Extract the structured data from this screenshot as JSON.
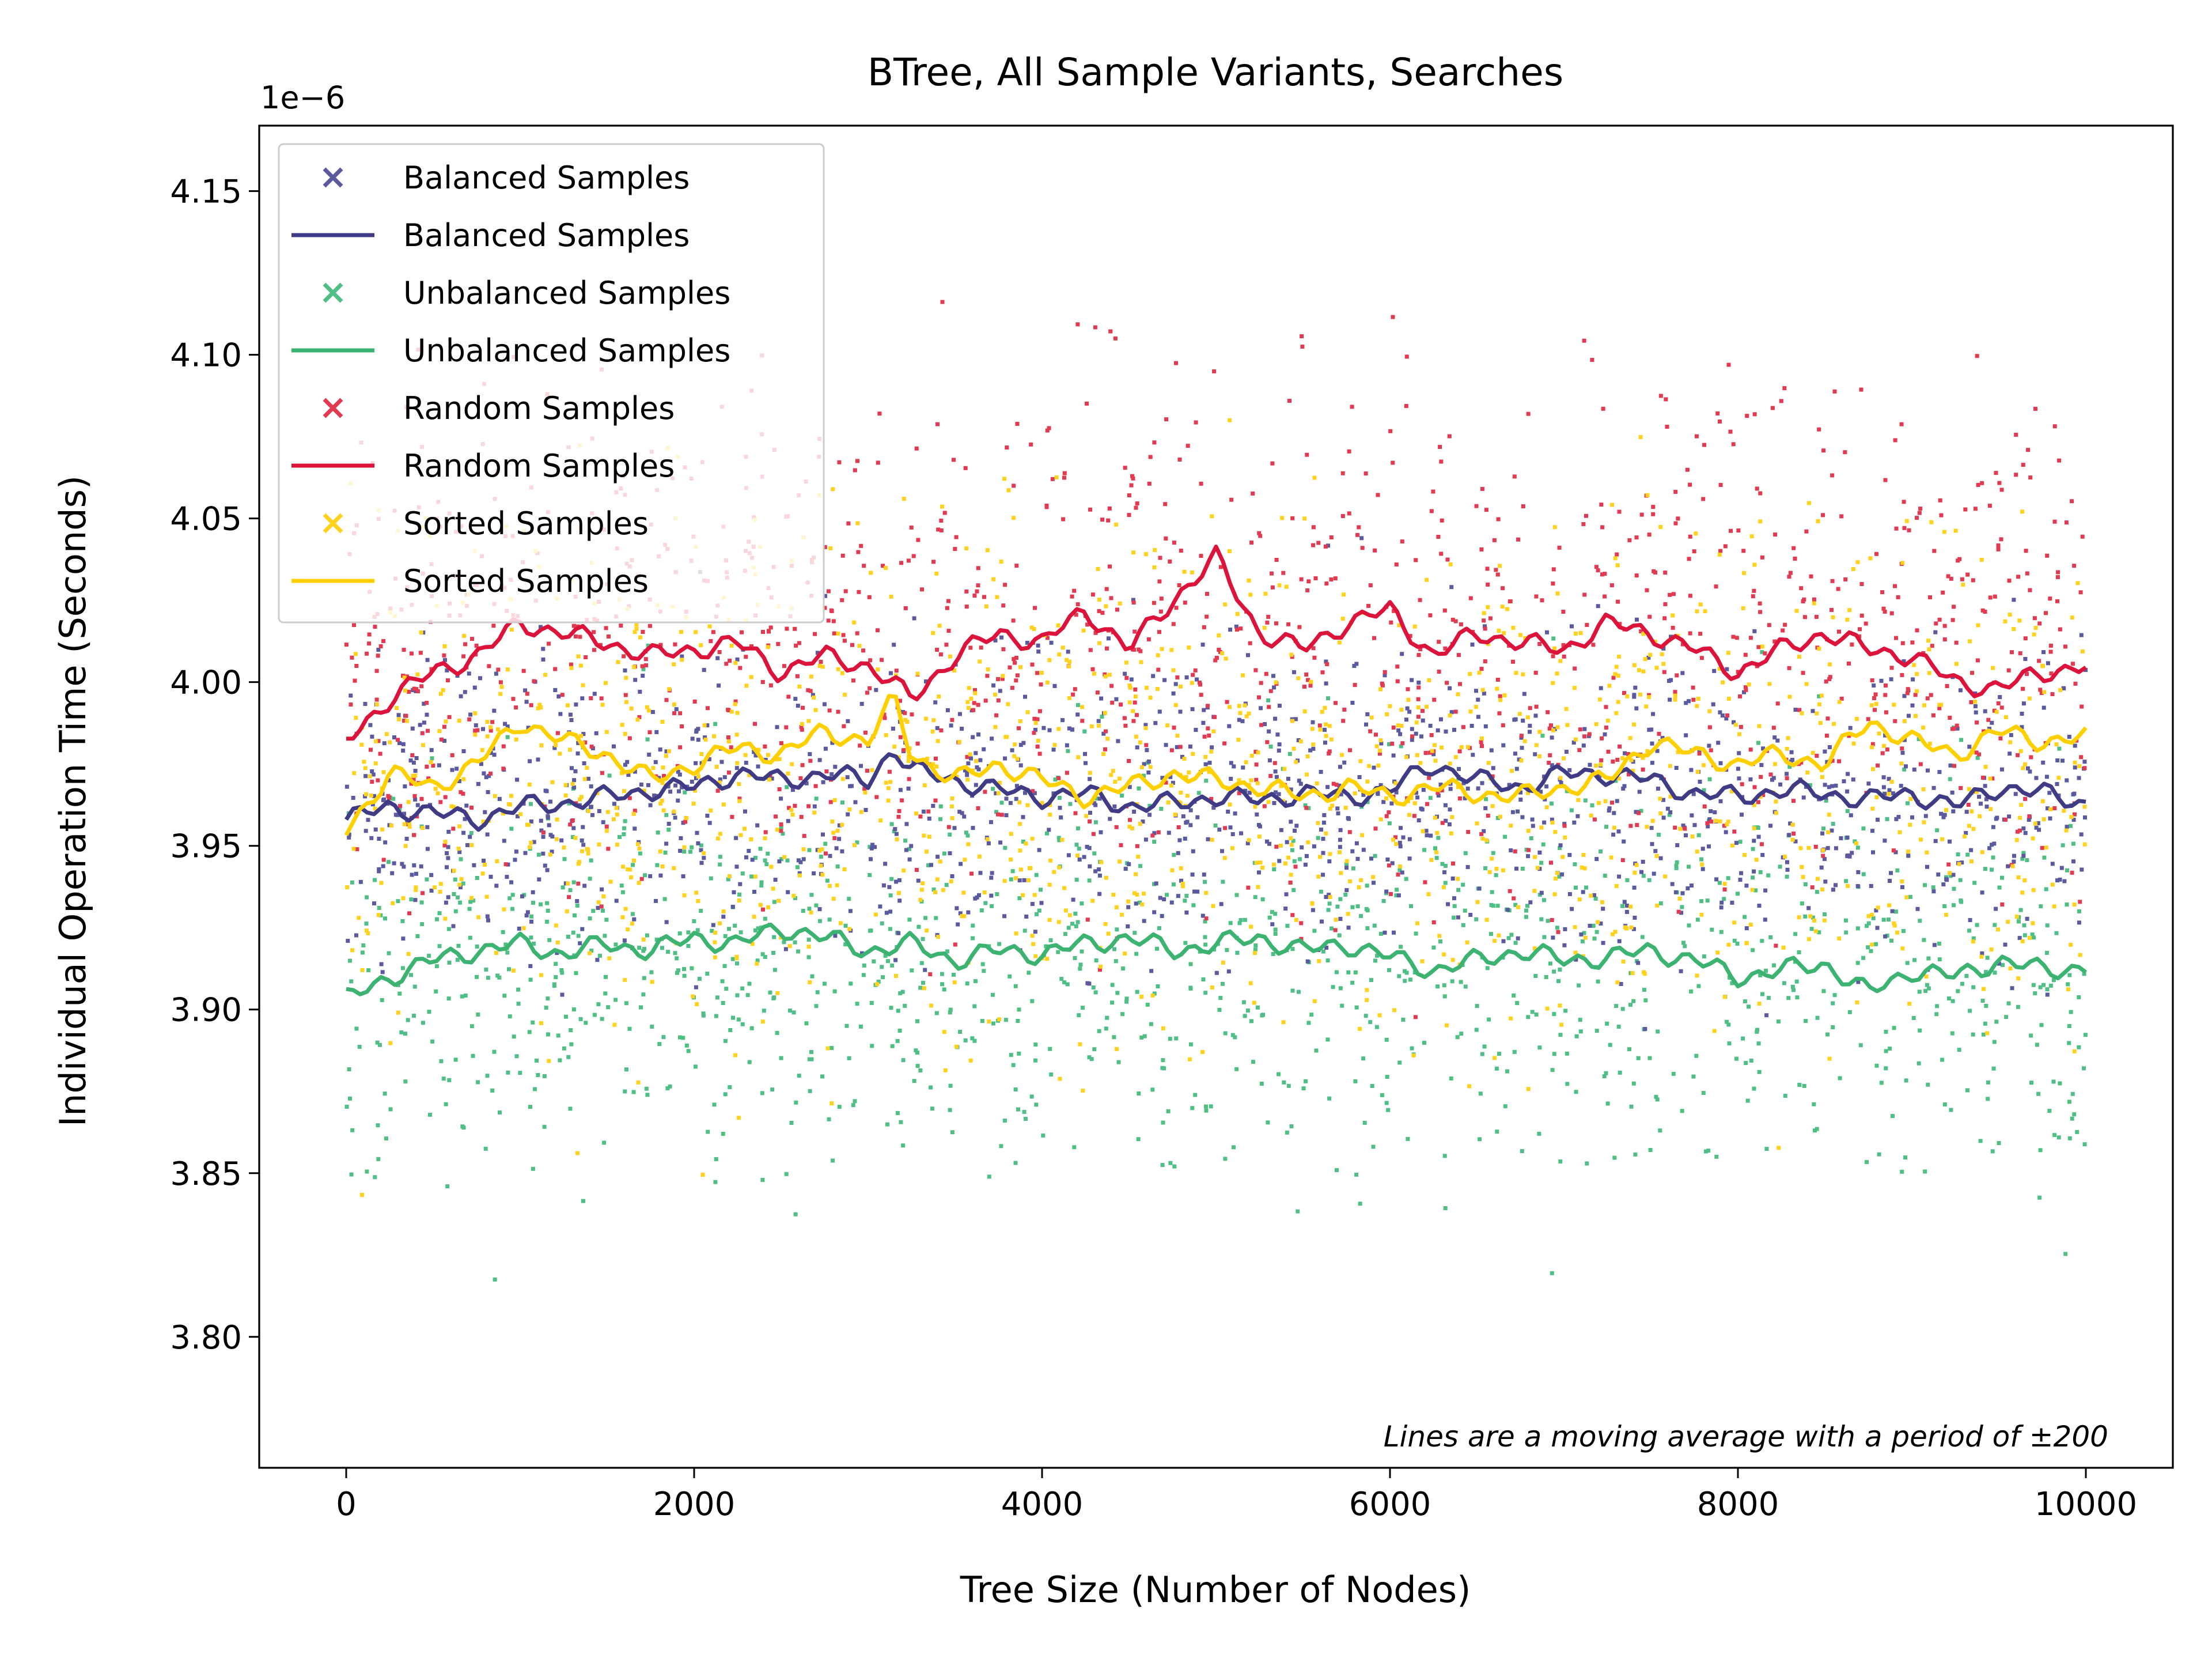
{
  "chart_data": {
    "type": "scatter",
    "title": "BTree, All Sample Variants, Searches",
    "xlabel": "Tree Size (Number of Nodes)",
    "ylabel": "Individual Operation Time (Seconds)",
    "offset_label": "1e−6",
    "annotation": "Lines are a moving average with a period of ±200",
    "xlim": [
      -500,
      10500
    ],
    "ylim": [
      3.76,
      4.17
    ],
    "xticks": [
      0,
      2000,
      4000,
      6000,
      8000,
      10000
    ],
    "xtick_labels": [
      "0",
      "2000",
      "4000",
      "6000",
      "8000",
      "10000"
    ],
    "yticks": [
      3.8,
      3.85,
      3.9,
      3.95,
      4.0,
      4.05,
      4.1,
      4.15
    ],
    "ytick_labels": [
      "3.80",
      "3.85",
      "3.90",
      "3.95",
      "4.00",
      "4.05",
      "4.10",
      "4.15"
    ],
    "grid": false,
    "legend_position": "top-left",
    "legend": [
      {
        "label": "Balanced Samples",
        "kind": "marker",
        "color": "#5b5a9e"
      },
      {
        "label": "Balanced Samples",
        "kind": "line",
        "color": "#3f3c85"
      },
      {
        "label": "Unbalanced Samples",
        "kind": "marker",
        "color": "#4fbf85"
      },
      {
        "label": "Unbalanced Samples",
        "kind": "line",
        "color": "#3cb371"
      },
      {
        "label": "Random Samples",
        "kind": "marker",
        "color": "#e23a50"
      },
      {
        "label": "Random Samples",
        "kind": "line",
        "color": "#dc143c"
      },
      {
        "label": "Sorted Samples",
        "kind": "marker",
        "color": "#ffd21f"
      },
      {
        "label": "Sorted Samples",
        "kind": "line",
        "color": "#ffd000"
      }
    ],
    "series": [
      {
        "name": "Balanced Samples",
        "marker_color": "#5b5a9e",
        "line_color": "#3f3c85",
        "scatter_center": 3.965,
        "scatter_spread": 0.045,
        "moving_average": {
          "x": [
            0,
            250,
            500,
            750,
            1000,
            1250,
            1500,
            1750,
            2000,
            2250,
            2500,
            2750,
            3000,
            3150,
            3250,
            3500,
            3750,
            4000,
            4250,
            4500,
            4750,
            5000,
            5250,
            5500,
            5750,
            6000,
            6250,
            6500,
            6750,
            7000,
            7250,
            7500,
            7750,
            8000,
            8250,
            8500,
            8750,
            9000,
            9250,
            9500,
            9750,
            10000
          ],
          "y": [
            3.958,
            3.962,
            3.96,
            3.958,
            3.962,
            3.963,
            3.965,
            3.967,
            3.968,
            3.972,
            3.97,
            3.972,
            3.97,
            3.98,
            3.973,
            3.97,
            3.967,
            3.965,
            3.966,
            3.962,
            3.963,
            3.965,
            3.964,
            3.966,
            3.965,
            3.967,
            3.975,
            3.97,
            3.968,
            3.972,
            3.972,
            3.97,
            3.966,
            3.965,
            3.967,
            3.966,
            3.964,
            3.966,
            3.962,
            3.968,
            3.966,
            3.963
          ]
        }
      },
      {
        "name": "Unbalanced Samples",
        "marker_color": "#4fbf85",
        "line_color": "#3cb371",
        "scatter_center": 3.913,
        "scatter_spread": 0.06,
        "moving_average": {
          "x": [
            0,
            250,
            500,
            750,
            1000,
            1250,
            1500,
            1750,
            2000,
            2250,
            2500,
            2750,
            3000,
            3250,
            3500,
            3750,
            4000,
            4250,
            4500,
            4750,
            5000,
            5250,
            5500,
            5750,
            6000,
            6250,
            6500,
            6750,
            7000,
            7250,
            7500,
            7750,
            8000,
            8250,
            8500,
            8750,
            9000,
            9250,
            9500,
            9750,
            10000
          ],
          "y": [
            3.903,
            3.91,
            3.915,
            3.918,
            3.92,
            3.917,
            3.92,
            3.918,
            3.922,
            3.92,
            3.925,
            3.922,
            3.918,
            3.92,
            3.915,
            3.918,
            3.917,
            3.92,
            3.922,
            3.918,
            3.92,
            3.922,
            3.918,
            3.92,
            3.916,
            3.912,
            3.915,
            3.918,
            3.915,
            3.916,
            3.918,
            3.915,
            3.91,
            3.912,
            3.914,
            3.905,
            3.912,
            3.91,
            3.915,
            3.912,
            3.913
          ]
        }
      },
      {
        "name": "Random Samples",
        "marker_color": "#e23a50",
        "line_color": "#dc143c",
        "scatter_center": 4.01,
        "scatter_spread": 0.07,
        "moving_average": {
          "x": [
            0,
            250,
            500,
            750,
            1000,
            1250,
            1500,
            1750,
            2000,
            2250,
            2500,
            2750,
            3000,
            3250,
            3500,
            3750,
            4000,
            4250,
            4500,
            4750,
            5000,
            5250,
            5500,
            5750,
            6000,
            6250,
            6500,
            6750,
            7000,
            7250,
            7500,
            7750,
            8000,
            8250,
            8500,
            8750,
            9000,
            9250,
            9500,
            9750,
            10000
          ],
          "y": [
            3.982,
            3.995,
            4.003,
            4.008,
            4.018,
            4.015,
            4.012,
            4.008,
            4.01,
            4.012,
            4.003,
            4.008,
            4.005,
            3.995,
            4.008,
            4.015,
            4.012,
            4.022,
            4.01,
            4.025,
            4.038,
            4.015,
            4.01,
            4.018,
            4.022,
            4.008,
            4.015,
            4.012,
            4.01,
            4.018,
            4.015,
            4.01,
            4.003,
            4.01,
            4.015,
            4.01,
            4.008,
            4.0,
            3.998,
            4.003,
            4.005
          ]
        }
      },
      {
        "name": "Sorted Samples",
        "marker_color": "#ffd21f",
        "line_color": "#ffd000",
        "scatter_center": 3.97,
        "scatter_spread": 0.07,
        "moving_average": {
          "x": [
            0,
            250,
            500,
            750,
            1000,
            1250,
            1500,
            1750,
            2000,
            2250,
            2500,
            2750,
            3000,
            3150,
            3250,
            3500,
            3750,
            4000,
            4250,
            4500,
            4750,
            5000,
            5250,
            5500,
            5750,
            6000,
            6250,
            6500,
            6750,
            7000,
            7250,
            7500,
            7750,
            8000,
            8250,
            8500,
            8750,
            9000,
            9250,
            9500,
            9750,
            10000
          ],
          "y": [
            3.955,
            3.972,
            3.968,
            3.975,
            3.988,
            3.982,
            3.978,
            3.97,
            3.975,
            3.98,
            3.978,
            3.985,
            3.982,
            3.995,
            3.978,
            3.97,
            3.975,
            3.97,
            3.965,
            3.968,
            3.972,
            3.97,
            3.968,
            3.965,
            3.968,
            3.965,
            3.968,
            3.966,
            3.965,
            3.968,
            3.97,
            3.982,
            3.978,
            3.975,
            3.978,
            3.975,
            3.988,
            3.982,
            3.978,
            3.985,
            3.982,
            3.983
          ]
        }
      }
    ]
  }
}
